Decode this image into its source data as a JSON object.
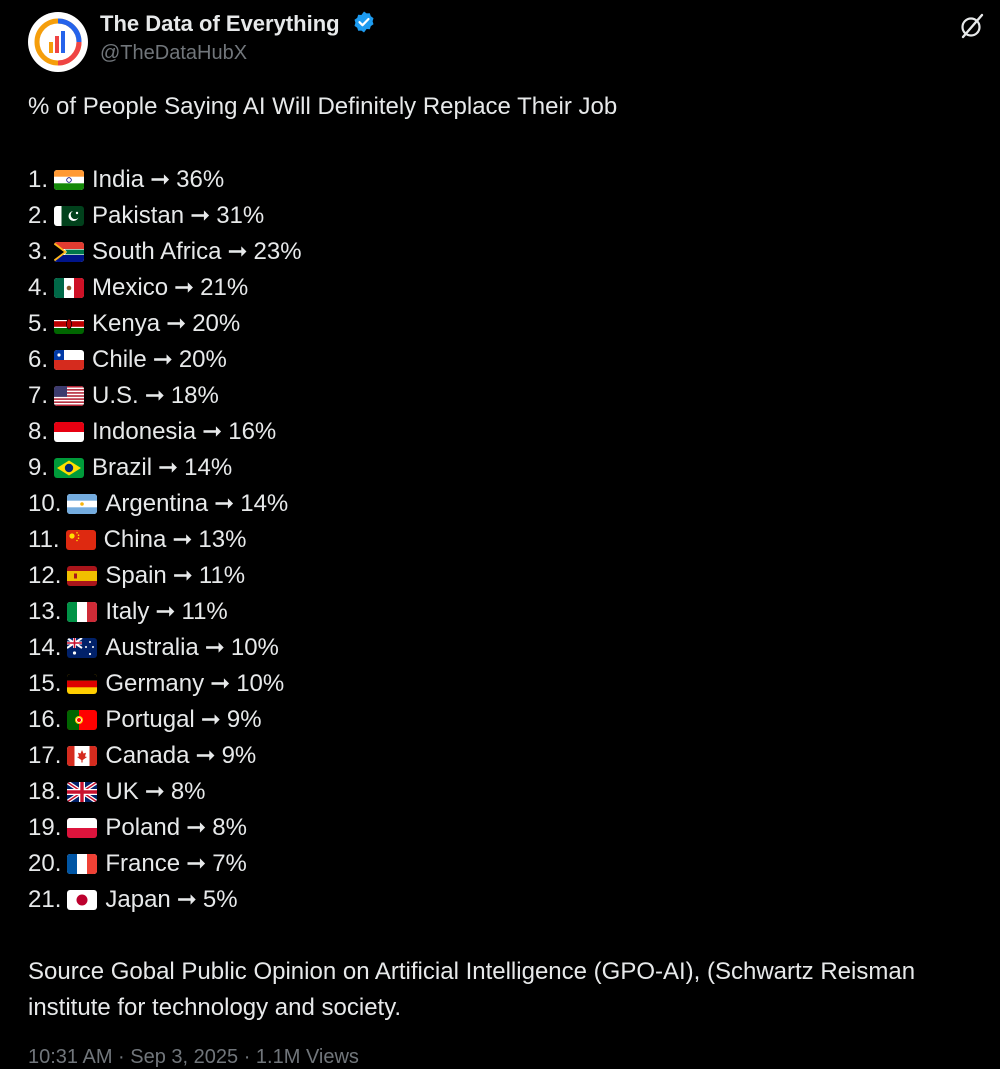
{
  "author": {
    "name": "The Data of Everything",
    "handle": "@TheDataHubX",
    "verified_color": "#1d9bf0"
  },
  "post": {
    "title": "% of People Saying AI Will Definitely Replace Their Job",
    "arrow": "➞",
    "items": [
      {
        "num": "1.",
        "country": "India",
        "value": "36%",
        "flag": "india"
      },
      {
        "num": "2.",
        "country": "Pakistan",
        "value": "31%",
        "flag": "pakistan"
      },
      {
        "num": "3.",
        "country": "South Africa",
        "value": "23%",
        "flag": "south-africa"
      },
      {
        "num": "4.",
        "country": "Mexico",
        "value": "21%",
        "flag": "mexico"
      },
      {
        "num": "5.",
        "country": "Kenya",
        "value": "20%",
        "flag": "kenya"
      },
      {
        "num": "6.",
        "country": "Chile",
        "value": "20%",
        "flag": "chile"
      },
      {
        "num": "7.",
        "country": "U.S.",
        "value": "18%",
        "flag": "usa"
      },
      {
        "num": "8.",
        "country": "Indonesia",
        "value": "16%",
        "flag": "indonesia"
      },
      {
        "num": "9.",
        "country": "Brazil",
        "value": "14%",
        "flag": "brazil"
      },
      {
        "num": "10.",
        "country": "Argentina",
        "value": "14%",
        "flag": "argentina"
      },
      {
        "num": "11.",
        "country": "China",
        "value": "13%",
        "flag": "china"
      },
      {
        "num": "12.",
        "country": "Spain",
        "value": "11%",
        "flag": "spain"
      },
      {
        "num": "13.",
        "country": "Italy",
        "value": "11%",
        "flag": "italy"
      },
      {
        "num": "14.",
        "country": "Australia",
        "value": "10%",
        "flag": "australia"
      },
      {
        "num": "15.",
        "country": "Germany",
        "value": "10%",
        "flag": "germany"
      },
      {
        "num": "16.",
        "country": "Portugal",
        "value": "9%",
        "flag": "portugal"
      },
      {
        "num": "17.",
        "country": "Canada",
        "value": "9%",
        "flag": "canada"
      },
      {
        "num": "18.",
        "country": "UK",
        "value": "8%",
        "flag": "uk"
      },
      {
        "num": "19.",
        "country": "Poland",
        "value": "8%",
        "flag": "poland"
      },
      {
        "num": "20.",
        "country": "France",
        "value": "7%",
        "flag": "france"
      },
      {
        "num": "21.",
        "country": "Japan",
        "value": "5%",
        "flag": "japan"
      }
    ],
    "source": "Source Gobal Public Opinion on Artificial Intelligence (GPO-AI), (Schwartz Reisman institute for technology and society.",
    "footer_partial": "10:31 AM · Sep 3, 2025 · 1.1M Views"
  }
}
